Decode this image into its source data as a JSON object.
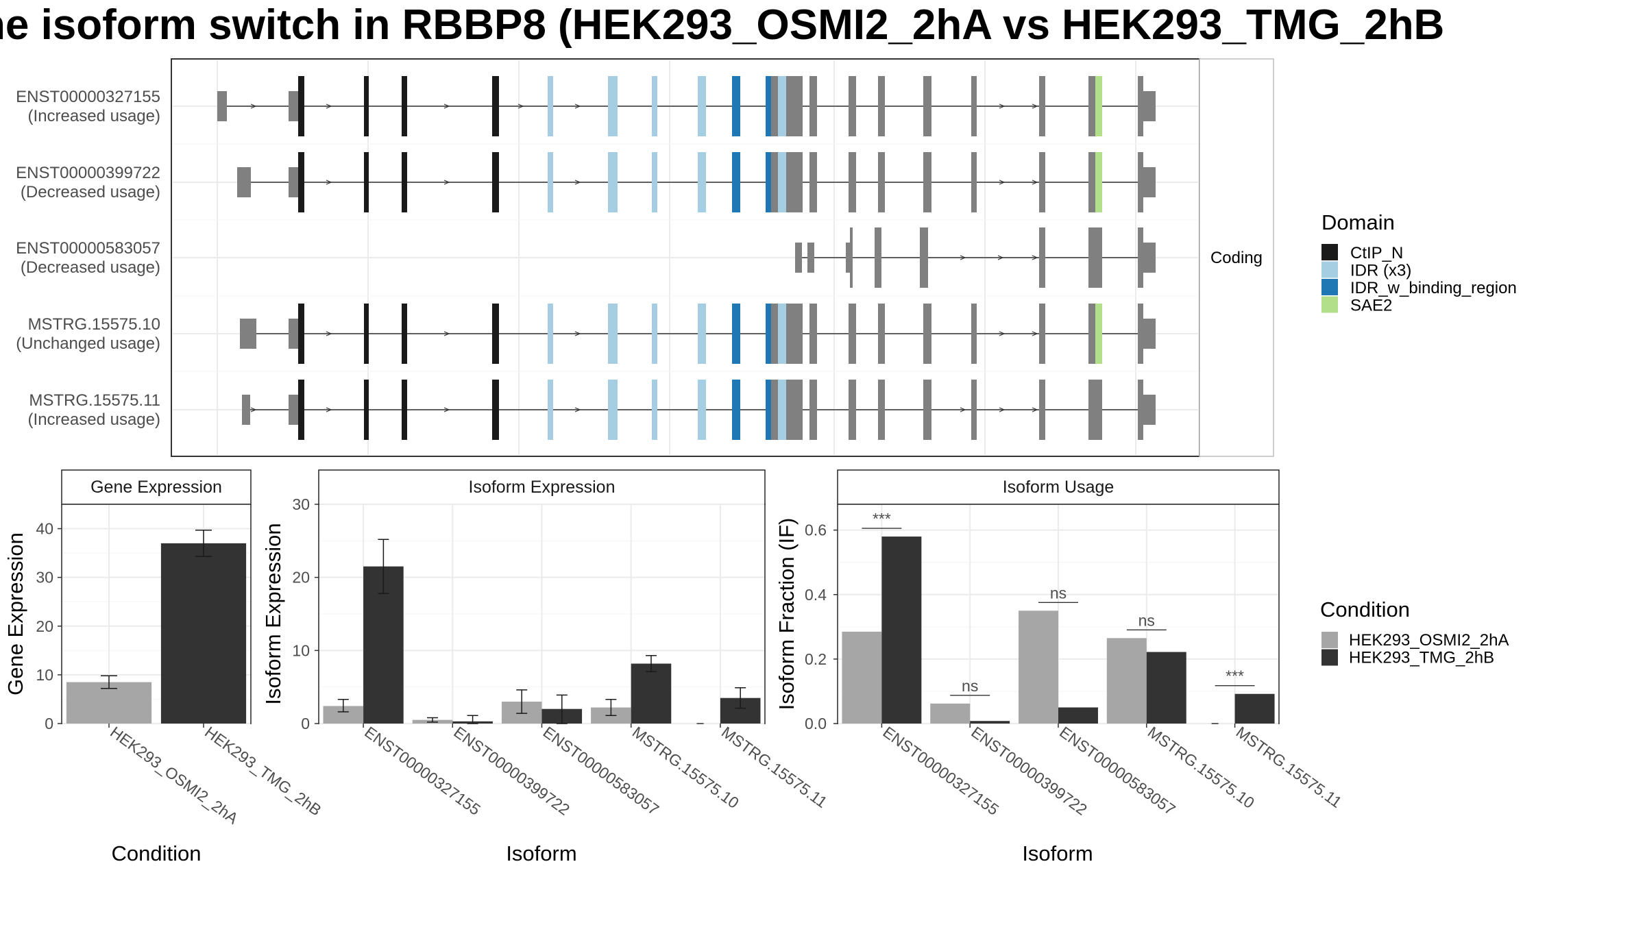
{
  "title": "he isoform switch in RBBP8 (HEK293_OSMI2_2hA vs HEK293_TMG_2hB",
  "structure": {
    "facet_label": "Coding",
    "isoforms": [
      {
        "id": "ENST00000327155",
        "usage": "(Increased usage)"
      },
      {
        "id": "ENST00000399722",
        "usage": "(Decreased usage)"
      },
      {
        "id": "ENST00000583057",
        "usage": "(Decreased usage)"
      },
      {
        "id": "MSTRG.15575.10",
        "usage": "(Unchanged usage)"
      },
      {
        "id": "MSTRG.15575.11",
        "usage": "(Increased usage)"
      }
    ]
  },
  "legend_domain": {
    "title": "Domain",
    "items": [
      {
        "label": "CtIP_N",
        "color": "#1a1a1a"
      },
      {
        "label": "IDR (x3)",
        "color": "#a6cee3"
      },
      {
        "label": "IDR_w_binding_region",
        "color": "#1f78b4"
      },
      {
        "label": "SAE2",
        "color": "#b2df8a"
      }
    ]
  },
  "legend_condition": {
    "title": "Condition",
    "items": [
      {
        "label": "HEK293_OSMI2_2hA",
        "color": "#a6a6a6"
      },
      {
        "label": "HEK293_TMG_2hB",
        "color": "#333333"
      }
    ]
  },
  "chart_data": [
    {
      "type": "bar",
      "title": "Gene Expression",
      "xlabel": "Condition",
      "ylabel": "Gene Expression",
      "ylim": [
        0,
        45
      ],
      "yticks": [
        0,
        10,
        20,
        30,
        40
      ],
      "categories": [
        "HEK293_OSMI2_2hA",
        "HEK293_TMG_2hB"
      ],
      "values": [
        8.5,
        37
      ],
      "errors": [
        [
          7.2,
          9.8
        ],
        [
          34.3,
          39.7
        ]
      ],
      "colors": [
        "#a6a6a6",
        "#333333"
      ]
    },
    {
      "type": "bar",
      "title": "Isoform Expression",
      "xlabel": "Isoform",
      "ylabel": "Isoform Expression",
      "ylim": [
        0,
        30
      ],
      "yticks": [
        0,
        10,
        20,
        30
      ],
      "categories": [
        "ENST00000327155",
        "ENST00000399722",
        "ENST00000583057",
        "MSTRG.15575.10",
        "MSTRG.15575.11"
      ],
      "series": [
        {
          "name": "HEK293_OSMI2_2hA",
          "color": "#a6a6a6",
          "values": [
            2.4,
            0.5,
            3.0,
            2.2,
            0.0
          ],
          "errors": [
            [
              1.6,
              3.3
            ],
            [
              0.2,
              0.8
            ],
            [
              1.4,
              4.6
            ],
            [
              1.1,
              3.3
            ],
            [
              0.0,
              0.0
            ]
          ]
        },
        {
          "name": "HEK293_TMG_2hB",
          "color": "#333333",
          "values": [
            21.5,
            0.3,
            2.0,
            8.2,
            3.5
          ],
          "errors": [
            [
              17.8,
              25.2
            ],
            [
              0.0,
              1.1
            ],
            [
              0.0,
              3.9
            ],
            [
              7.1,
              9.3
            ],
            [
              2.1,
              4.9
            ]
          ]
        }
      ]
    },
    {
      "type": "bar",
      "title": "Isoform Usage",
      "xlabel": "Isoform",
      "ylabel": "Isoform Fraction (IF)",
      "ylim": [
        0,
        0.68
      ],
      "yticks": [
        0.0,
        0.2,
        0.4,
        0.6
      ],
      "ytick_labels": [
        "0.0",
        "0.2",
        "0.4",
        "0.6"
      ],
      "categories": [
        "ENST00000327155",
        "ENST00000399722",
        "ENST00000583057",
        "MSTRG.15575.10",
        "MSTRG.15575.11"
      ],
      "series": [
        {
          "name": "HEK293_OSMI2_2hA",
          "color": "#a6a6a6",
          "values": [
            0.285,
            0.062,
            0.35,
            0.265,
            0.0
          ]
        },
        {
          "name": "HEK293_TMG_2hB",
          "color": "#333333",
          "values": [
            0.58,
            0.008,
            0.05,
            0.222,
            0.092
          ]
        }
      ],
      "annotations": [
        "***",
        "ns",
        "ns",
        "ns",
        "***"
      ]
    }
  ]
}
